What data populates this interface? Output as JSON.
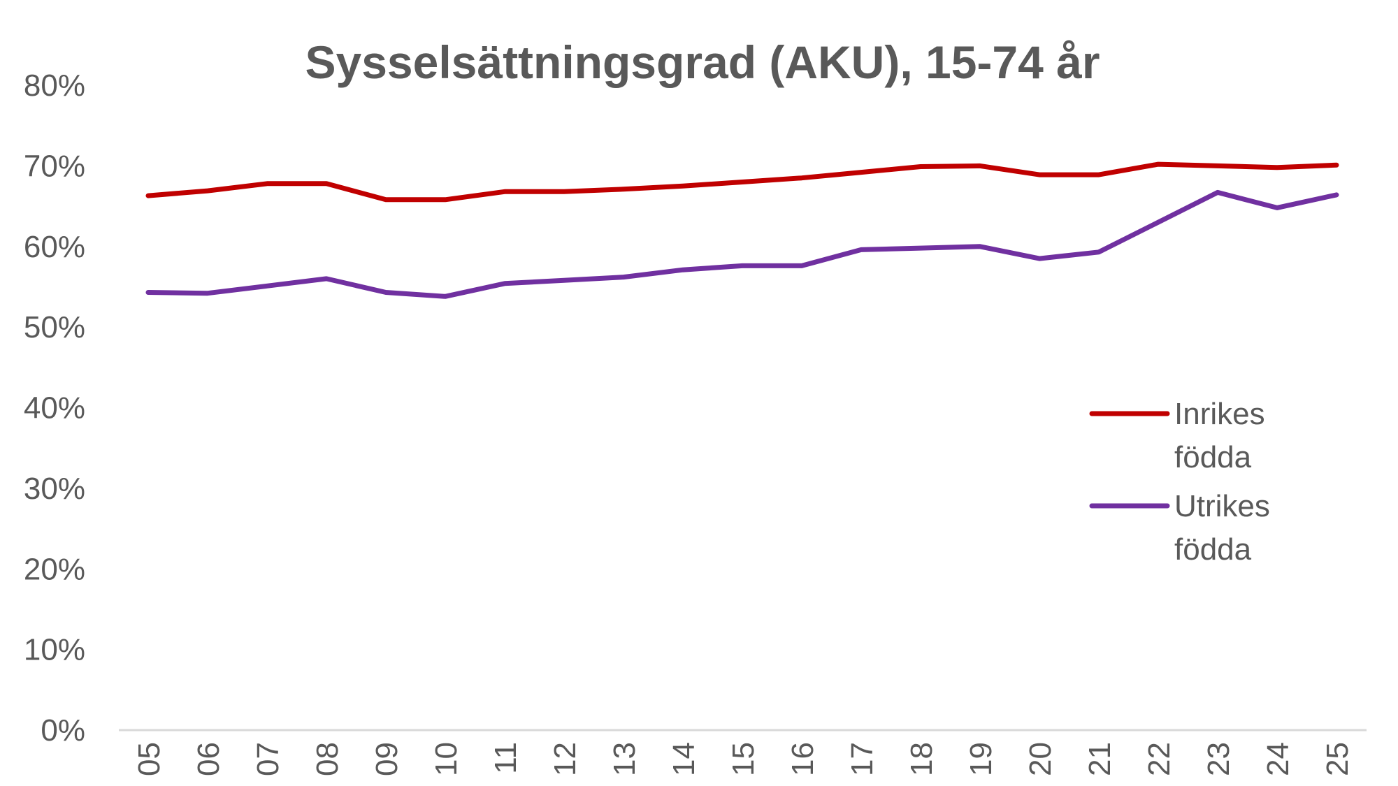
{
  "chart_data": {
    "type": "line",
    "title": "Sysselsättningsgrad (AKU), 15-74 år",
    "categories": [
      "05",
      "06",
      "07",
      "08",
      "09",
      "10",
      "11",
      "12",
      "13",
      "14",
      "15",
      "16",
      "17",
      "18",
      "19",
      "20",
      "21",
      "22",
      "23",
      "24",
      "25"
    ],
    "ytick_labels": [
      "0%",
      "10%",
      "20%",
      "30%",
      "40%",
      "50%",
      "60%",
      "70%",
      "80%"
    ],
    "ylim": [
      0,
      80
    ],
    "grid": false,
    "legend_position": "right",
    "series": [
      {
        "name_lines": [
          "Inrikes",
          "födda"
        ],
        "color": "#C00000",
        "values": [
          66.3,
          66.9,
          67.8,
          67.8,
          65.8,
          65.8,
          66.8,
          66.8,
          67.1,
          67.5,
          68.0,
          68.5,
          69.2,
          69.9,
          70.0,
          68.9,
          68.9,
          70.2,
          70.0,
          69.8,
          70.1
        ]
      },
      {
        "name_lines": [
          "Utrikes",
          "födda"
        ],
        "color": "#7030A0",
        "values": [
          54.3,
          54.2,
          55.1,
          56.0,
          54.3,
          53.8,
          55.4,
          55.8,
          56.2,
          57.1,
          57.6,
          57.6,
          59.6,
          59.8,
          60.0,
          58.5,
          59.3,
          63.0,
          66.7,
          64.8,
          66.4
        ]
      }
    ]
  }
}
